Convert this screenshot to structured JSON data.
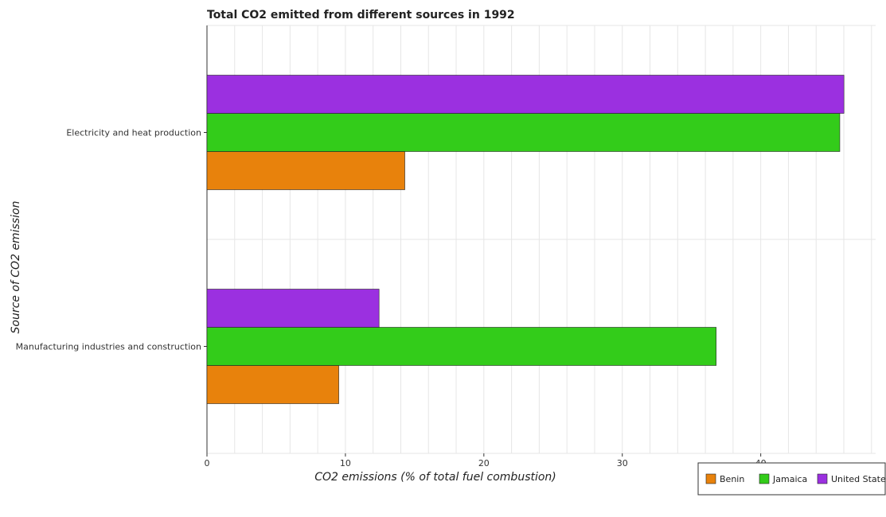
{
  "chart_data": {
    "type": "bar",
    "orientation": "horizontal",
    "title": "Total CO2 emitted from different sources in 1992",
    "xlabel": "CO2 emissions (% of total fuel combustion)",
    "ylabel": "Source of CO2 emission",
    "categories": [
      "Electricity and heat production",
      "Manufacturing industries and construction"
    ],
    "series": [
      {
        "name": "Benin",
        "color": "#e8820c",
        "values": [
          14.29,
          9.52
        ]
      },
      {
        "name": "Jamaica",
        "color": "#33cc1a",
        "values": [
          45.71,
          36.78
        ]
      },
      {
        "name": "United States",
        "color": "#9b30e0",
        "values": [
          46.01,
          12.43
        ]
      }
    ],
    "xticks": [
      0,
      10,
      20,
      30,
      40
    ],
    "xlim": [
      0,
      48.3
    ],
    "grid": true,
    "legend_position": "bottom-right"
  }
}
